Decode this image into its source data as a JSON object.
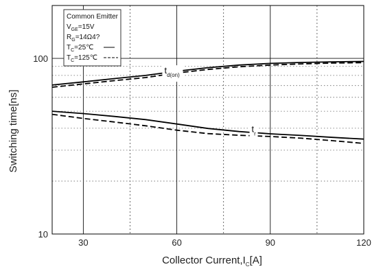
{
  "chart_data": {
    "type": "line",
    "xlabel": "Collector Current,I",
    "xlabel_sub": "C",
    "xlabel_unit": "[A]",
    "ylabel": "Switching time[ns]",
    "xlim": [
      20,
      120
    ],
    "ylim": [
      10,
      200
    ],
    "y_scale": "log",
    "grid": true,
    "x_ticks": [
      30,
      60,
      90,
      120
    ],
    "y_ticks": [
      10,
      100
    ],
    "legend": {
      "placement": "top-left",
      "lines": [
        {
          "main": "Common Emitter",
          "sub": "",
          "tail": ""
        },
        {
          "main": "V",
          "sub": "GE",
          "tail": "=15V"
        },
        {
          "main": "R",
          "sub": "G",
          "tail": "=14Ω4?"
        },
        {
          "main": "T",
          "sub": "C",
          "tail": "=25℃"
        },
        {
          "main": "T",
          "sub": "C",
          "tail": "=125℃"
        }
      ]
    },
    "series": [
      {
        "label": "td(on) 25℃",
        "style": "solid",
        "x": [
          20,
          30,
          40,
          50,
          60,
          70,
          80,
          90,
          100,
          110,
          120
        ],
        "y": [
          70.5,
          73.5,
          76.7,
          80,
          84.5,
          88.5,
          91.6,
          93.6,
          94.8,
          95.6,
          96.1
        ]
      },
      {
        "label": "td(on) 125℃",
        "style": "dashed",
        "x": [
          20,
          30,
          40,
          50,
          60,
          70,
          80,
          90,
          100,
          110,
          120
        ],
        "y": [
          68.5,
          71.5,
          74.7,
          77.8,
          82.5,
          86.5,
          89.6,
          91.6,
          93,
          94,
          94.5
        ]
      },
      {
        "label": "tr 25℃",
        "style": "solid",
        "x": [
          20,
          30,
          40,
          50,
          60,
          70,
          80,
          90,
          100,
          110,
          120
        ],
        "y": [
          50,
          48.5,
          46.7,
          44.8,
          42.3,
          39.9,
          38.3,
          37.2,
          36.4,
          35.5,
          34.7
        ]
      },
      {
        "label": "tr 125℃",
        "style": "dashed",
        "x": [
          20,
          30,
          40,
          50,
          60,
          70,
          80,
          90,
          100,
          110,
          120
        ],
        "y": [
          48,
          45.5,
          43.4,
          41.3,
          39,
          37.3,
          36.5,
          35.9,
          35.1,
          34,
          32.8
        ]
      }
    ],
    "annotations": [
      {
        "main": "t",
        "sub": "d(on)",
        "x": 56,
        "y": 82
      },
      {
        "main": "t",
        "sub": "r",
        "x": 84,
        "y": 38
      }
    ]
  }
}
